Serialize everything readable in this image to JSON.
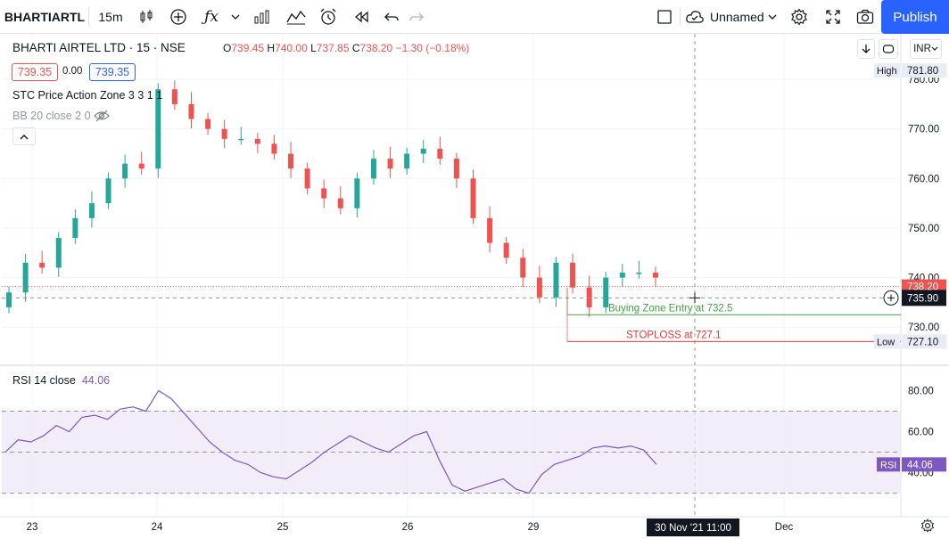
{
  "toolbar": {
    "symbol": "BHARTIARTL",
    "interval": "15m",
    "layout_name": "Unnamed",
    "publish_label": "Publish",
    "icons": [
      "candles-icon",
      "add-symbol-icon",
      "indicators-icon",
      "dropdown-icon",
      "templates-icon",
      "compare-icon",
      "alert-icon",
      "replay-icon",
      "undo-icon",
      "redo-icon",
      "layout-icon",
      "cloud-icon",
      "settings-icon",
      "fullscreen-icon",
      "camera-icon"
    ]
  },
  "legend": {
    "title": "BHARTI AIRTEL LTD · 15 · NSE",
    "open_label": "O",
    "open": "739.45",
    "high_label": "H",
    "high": "740.00",
    "low_label": "L",
    "low": "737.85",
    "close_label": "C",
    "close": "738.20",
    "change": "−1.30 (−0.18%)",
    "sell_price": "739.35",
    "spread": "0.00",
    "buy_price": "739.35",
    "indicator_1": "STC Price Action Zone 3 3 1 1",
    "indicator_2": "BB 20 close 2 0"
  },
  "right_controls": {
    "currency": "INR"
  },
  "colors": {
    "up": "#26a69a",
    "down": "#ef5350",
    "rsi": "#7e57c2",
    "accent": "#2962ff",
    "buy_zone": "#43a047",
    "stoploss": "#e53935"
  },
  "chart_data": [
    {
      "type": "candlestick",
      "title": "BHARTI AIRTEL LTD · 15 · NSE",
      "x_ticks": [
        "23",
        "24",
        "25",
        "26",
        "29",
        "Dec"
      ],
      "cursor_label": "30 Nov '21   11:00",
      "y_ticks": [
        "730.00",
        "740.00",
        "750.00",
        "760.00",
        "770.00",
        "780.00"
      ],
      "ylim": [
        725,
        782
      ],
      "candles_approx_close": [
        737,
        743,
        742,
        748,
        752,
        755,
        760,
        763,
        762,
        778,
        775,
        772,
        770,
        768,
        768,
        767,
        765,
        762,
        758,
        756,
        754,
        760,
        764,
        762,
        765,
        766,
        764,
        760,
        752,
        747,
        744,
        740,
        736,
        743,
        738,
        734,
        740,
        741,
        741,
        740
      ],
      "annotations": [
        {
          "label": "Buying Zone Entry at 732.5",
          "value": 732.5
        },
        {
          "label": "STOPLOSS at 727.1",
          "value": 727.1
        }
      ],
      "price_labels": {
        "high_label": "High",
        "high": "781.80",
        "low_label": "Low",
        "low": "727.10",
        "last": "738.20",
        "crosshair": "735.90"
      }
    },
    {
      "type": "line",
      "title": "RSI 14 close",
      "last_value": "44.06",
      "series_label": "RSI",
      "y_ticks": [
        "40.00",
        "60.00",
        "80.00"
      ],
      "ylim": [
        22,
        88
      ],
      "bands": [
        30,
        50,
        70
      ],
      "values": [
        50,
        56,
        55,
        58,
        63,
        60,
        67,
        68,
        66,
        71,
        72,
        70,
        80,
        76,
        69,
        62,
        55,
        50,
        46,
        44,
        40,
        38,
        37,
        41,
        45,
        50,
        54,
        58,
        55,
        52,
        50,
        54,
        58,
        60,
        46,
        34,
        31,
        33,
        35,
        37,
        32,
        30,
        39,
        44,
        46,
        48,
        52,
        53,
        52,
        53,
        51,
        44
      ]
    }
  ]
}
